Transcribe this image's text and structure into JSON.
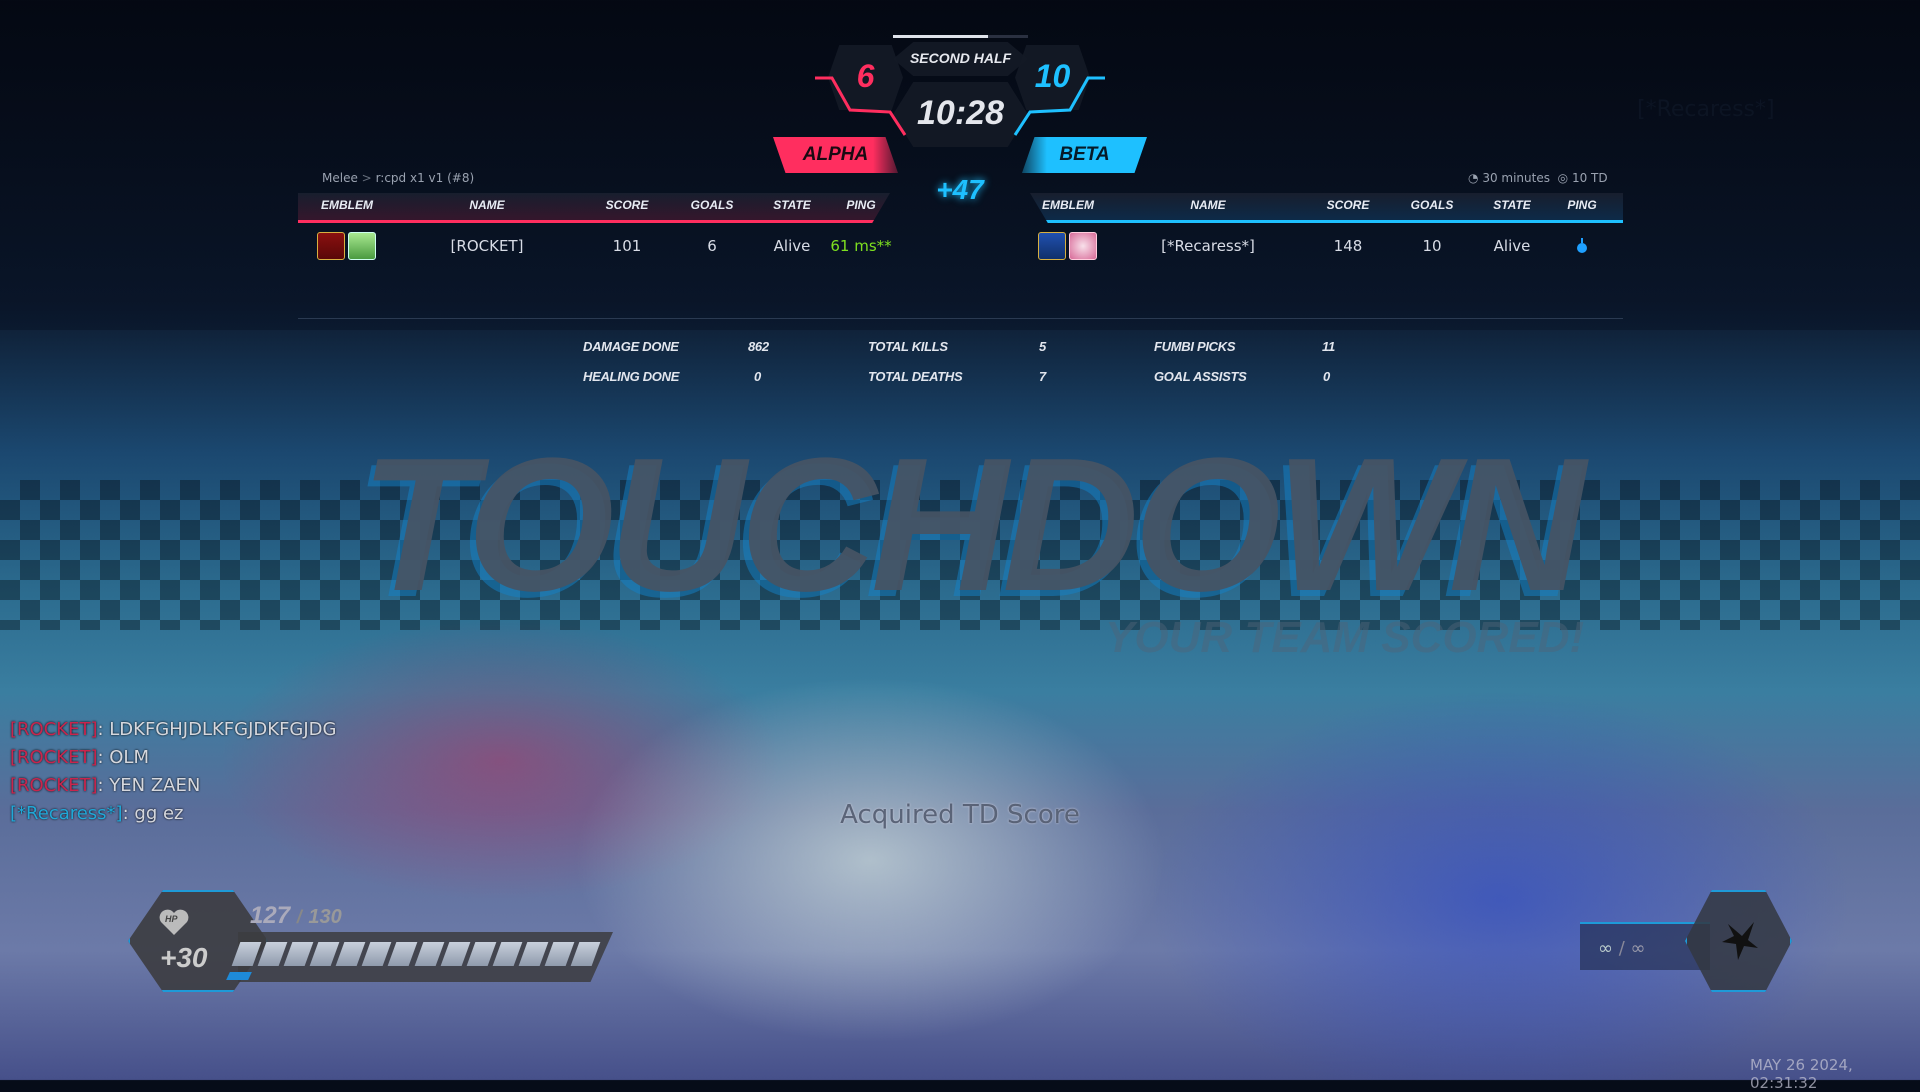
{
  "match": {
    "half": "SECOND HALF",
    "timer": "10:28",
    "score_diff": "+47",
    "alpha": {
      "name": "ALPHA",
      "score": "6",
      "color": "#ff2e5f"
    },
    "beta": {
      "name": "BETA",
      "score": "10",
      "color": "#1ec0ff"
    }
  },
  "breadcrumb": {
    "mode": "Melee",
    "separator": ">",
    "room": "r:cpd x1 v1 (#8)"
  },
  "rules": {
    "time": "30 minutes",
    "goal": "10 TD"
  },
  "columns": [
    "EMBLEM",
    "NAME",
    "SCORE",
    "GOALS",
    "STATE",
    "PING"
  ],
  "alpha_rows": [
    {
      "name": "[ROCKET]",
      "score": "101",
      "goals": "6",
      "state": "Alive",
      "ping": "61 ms**"
    }
  ],
  "beta_rows": [
    {
      "name": "[*Recaress*]",
      "score": "148",
      "goals": "10",
      "state": "Alive",
      "ping_icon": "connection-icon"
    }
  ],
  "stats": [
    {
      "label": "DAMAGE DONE",
      "value": "862"
    },
    {
      "label": "HEALING DONE",
      "value": "0"
    },
    {
      "label": "TOTAL KILLS",
      "value": "5"
    },
    {
      "label": "TOTAL DEATHS",
      "value": "7"
    },
    {
      "label": "FUMBI PICKS",
      "value": "11"
    },
    {
      "label": "GOAL ASSISTS",
      "value": "0"
    }
  ],
  "banner": {
    "title": "TOUCHDOWN",
    "subtitle": "YOUR TEAM SCORED!",
    "notice": "Acquired TD Score"
  },
  "player_tag": "[*Recaress*]",
  "chat": [
    {
      "name": "[ROCKET]",
      "team": "alpha",
      "msg": "LDKFGHJDLKFGJDKFGJDG"
    },
    {
      "name": "[ROCKET]",
      "team": "alpha",
      "msg": "OLM"
    },
    {
      "name": "[ROCKET]",
      "team": "alpha",
      "msg": "YEN ZAEN"
    },
    {
      "name": "[*Recaress*]",
      "team": "beta",
      "msg": "gg ez"
    }
  ],
  "hp": {
    "label": "HP",
    "current": "127",
    "max": "130",
    "separator": "/",
    "bonus": "+30",
    "fraction": 0.977
  },
  "ammo": {
    "current": "∞",
    "max": "∞",
    "separator": "/"
  },
  "timestamp": "MAY 26 2024, 02:31:32"
}
